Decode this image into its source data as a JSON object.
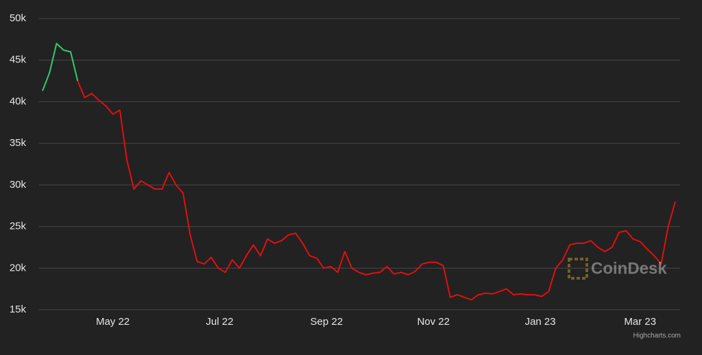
{
  "chart_data": {
    "type": "line",
    "watermark": "CoinDesk",
    "credits": "Highcharts.com",
    "background": "#222222",
    "grid": true,
    "xlim": [
      0,
      90
    ],
    "xticks": [
      {
        "value": 10,
        "label": "May 22"
      },
      {
        "value": 25.2,
        "label": "Jul 22"
      },
      {
        "value": 40.4,
        "label": "Sep 22"
      },
      {
        "value": 55.6,
        "label": "Nov 22"
      },
      {
        "value": 70.8,
        "label": "Jan 23"
      },
      {
        "value": 85,
        "label": "Mar 23"
      }
    ],
    "ylim": [
      15,
      50
    ],
    "yticks": [
      {
        "value": 15,
        "label": "15k"
      },
      {
        "value": 20,
        "label": "20k"
      },
      {
        "value": 25,
        "label": "25k"
      },
      {
        "value": 30,
        "label": "30k"
      },
      {
        "value": 35,
        "label": "35k"
      },
      {
        "value": 40,
        "label": "40k"
      },
      {
        "value": 45,
        "label": "45k"
      },
      {
        "value": 50,
        "label": "50k"
      }
    ],
    "series": [
      {
        "color": "#2ecc71",
        "values": [
          41.3,
          43.5,
          47.0,
          46.2,
          46.0,
          42.5,
          null,
          null,
          null,
          null,
          null,
          null,
          null,
          null,
          null,
          null,
          null,
          null,
          null,
          null,
          null,
          null,
          null,
          null,
          null,
          null,
          null,
          null,
          null,
          null,
          null,
          null,
          null,
          null,
          null,
          null,
          null,
          null,
          null,
          null,
          null,
          null,
          null,
          null,
          null,
          null,
          null,
          null,
          null,
          null,
          null,
          null,
          null,
          null,
          null,
          null,
          null,
          null,
          null,
          null,
          null,
          null,
          null,
          null,
          null,
          null,
          null,
          null,
          null,
          null,
          null,
          null,
          null,
          null,
          null,
          null,
          null,
          null,
          null,
          null,
          null,
          null,
          null,
          null,
          null,
          null,
          null,
          null,
          null,
          null,
          null
        ]
      },
      {
        "color": "#e30f0f",
        "values": [
          null,
          null,
          null,
          null,
          null,
          42.5,
          40.5,
          41.0,
          40.2,
          39.5,
          38.5,
          39.0,
          33.0,
          29.5,
          30.5,
          30.0,
          29.5,
          29.5,
          31.5,
          30.0,
          29.0,
          24.0,
          20.8,
          20.5,
          21.3,
          20.0,
          19.5,
          21.0,
          20.0,
          21.5,
          22.8,
          21.5,
          23.5,
          23.0,
          23.3,
          24.0,
          24.2,
          23.0,
          21.5,
          21.2,
          20.0,
          20.2,
          19.5,
          22.0,
          20.0,
          19.5,
          19.2,
          19.4,
          19.5,
          20.2,
          19.3,
          19.5,
          19.2,
          19.6,
          20.5,
          20.7,
          20.7,
          20.3,
          16.5,
          16.8,
          16.5,
          16.2,
          16.8,
          17.0,
          16.9,
          17.2,
          17.5,
          16.8,
          16.9,
          16.8,
          16.8,
          16.6,
          17.2,
          20.0,
          21.0,
          22.8,
          23.0,
          23.0,
          23.3,
          22.5,
          22.0,
          22.5,
          24.3,
          24.5,
          23.5,
          23.2,
          22.3,
          21.5,
          20.5,
          25.0,
          28.0
        ]
      }
    ]
  }
}
